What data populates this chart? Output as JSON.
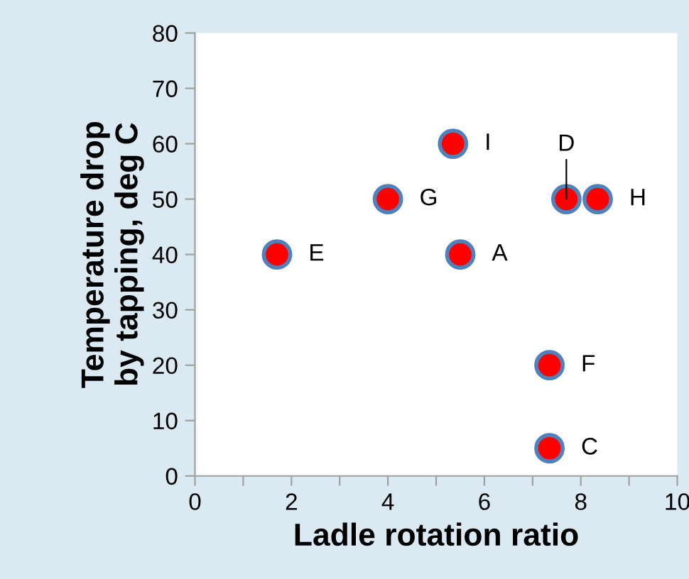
{
  "chart_data": {
    "type": "scatter",
    "xlabel": "Ladle rotation ratio",
    "ylabel": "Temperature drop\nby tapping, deg C",
    "x": [
      5.5,
      7.35,
      7.7,
      1.7,
      7.35,
      4.0,
      8.35,
      5.35
    ],
    "series": [
      {
        "color": "#ff0000",
        "values": [
          40,
          5,
          50,
          40,
          20,
          50,
          50,
          60
        ]
      }
    ],
    "marker": "circle",
    "grid": false,
    "legend": false,
    "xlim": [
      0,
      10
    ],
    "ylim": [
      0,
      80
    ],
    "xticks": [
      0,
      {
        "value": 1,
        "label": null
      },
      2,
      {
        "value": 3,
        "label": null
      },
      4,
      {
        "value": 5,
        "label": null
      },
      6,
      {
        "value": 7,
        "label": null
      },
      8,
      {
        "value": 9,
        "label": null
      },
      10
    ],
    "yticks": [
      0,
      10,
      20,
      30,
      40,
      50,
      60,
      70,
      80
    ],
    "annotations": [
      {
        "text": "A",
        "x": 5.5,
        "y": 40
      },
      {
        "text": "C",
        "x": 7.35,
        "y": 5
      },
      {
        "text": "D",
        "x": 7.7,
        "y": 50
      },
      {
        "text": "E",
        "x": 1.7,
        "y": 40
      },
      {
        "text": "F",
        "x": 7.35,
        "y": 20
      },
      {
        "text": "G",
        "x": 4.0,
        "y": 50
      },
      {
        "text": "H",
        "x": 8.35,
        "y": 50
      },
      {
        "text": "I",
        "x": 5.35,
        "y": 60
      }
    ]
  }
}
